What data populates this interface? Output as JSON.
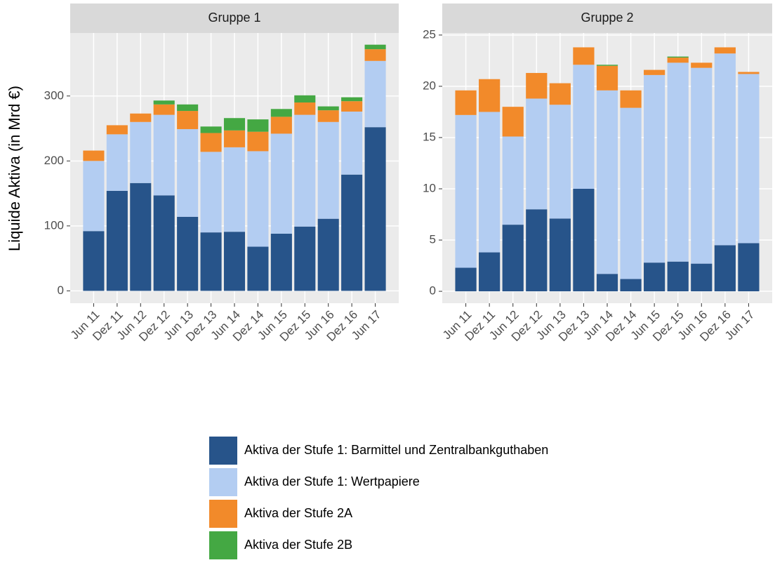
{
  "chart_data": [
    {
      "type": "bar",
      "stacked": true,
      "title": "Gruppe 1",
      "y_label": "Liquide Aktiva (in Mrd €)",
      "categories": [
        "Jun 11",
        "Dez 11",
        "Jun 12",
        "Dez 12",
        "Jun 13",
        "Dez 13",
        "Jun 14",
        "Dez 14",
        "Jun 15",
        "Dez 15",
        "Jun 16",
        "Dez 16",
        "Jun 17"
      ],
      "series": [
        {
          "name": "Aktiva der Stufe 1: Barmittel und Zentralbankguthaben",
          "color": "#27548a",
          "values": [
            92,
            154,
            166,
            147,
            114,
            90,
            91,
            68,
            88,
            99,
            111,
            179,
            252
          ]
        },
        {
          "name": "Aktiva der Stufe 1: Wertpapiere",
          "color": "#b3cdf2",
          "values": [
            108,
            87,
            94,
            124,
            135,
            124,
            130,
            147,
            154,
            172,
            149,
            97,
            102
          ]
        },
        {
          "name": "Aktiva der Stufe 2A",
          "color": "#f28a2a",
          "values": [
            16,
            14,
            13,
            16,
            28,
            29,
            26,
            30,
            26,
            19,
            18,
            16,
            18
          ]
        },
        {
          "name": "Aktiva der Stufe 2B",
          "color": "#44a843",
          "values": [
            0,
            0,
            0,
            6,
            10,
            10,
            19,
            19,
            12,
            11,
            6,
            6,
            7
          ]
        }
      ],
      "ylim": [
        -19,
        397
      ],
      "yticks": [
        0,
        100,
        200,
        300
      ],
      "grid": true
    },
    {
      "type": "bar",
      "stacked": true,
      "title": "Gruppe 2",
      "categories": [
        "Jun 11",
        "Dez 11",
        "Jun 12",
        "Dez 12",
        "Jun 13",
        "Dez 13",
        "Jun 14",
        "Dez 14",
        "Jun 15",
        "Dez 15",
        "Jun 16",
        "Dez 16",
        "Jun 17"
      ],
      "series": [
        {
          "name": "Aktiva der Stufe 1: Barmittel und Zentralbankguthaben",
          "color": "#27548a",
          "values": [
            2.3,
            3.8,
            6.5,
            8.0,
            7.1,
            10.0,
            1.7,
            1.2,
            2.8,
            2.9,
            2.7,
            4.5,
            4.7
          ]
        },
        {
          "name": "Aktiva der Stufe 1: Wertpapiere",
          "color": "#b3cdf2",
          "values": [
            14.9,
            13.7,
            8.6,
            10.8,
            11.1,
            12.1,
            17.9,
            16.7,
            18.3,
            19.4,
            19.1,
            18.7,
            16.5
          ]
        },
        {
          "name": "Aktiva der Stufe 2A",
          "color": "#f28a2a",
          "values": [
            2.4,
            3.2,
            2.9,
            2.5,
            2.1,
            1.7,
            2.4,
            1.7,
            0.5,
            0.5,
            0.5,
            0.6,
            0.2
          ]
        },
        {
          "name": "Aktiva der Stufe 2B",
          "color": "#44a843",
          "values": [
            0,
            0,
            0,
            0,
            0,
            0,
            0.1,
            0,
            0,
            0.1,
            0,
            0,
            0
          ]
        }
      ],
      "ylim": [
        -1.16,
        25.2
      ],
      "yticks": [
        0,
        5,
        10,
        15,
        20,
        25
      ],
      "grid": true
    }
  ]
}
